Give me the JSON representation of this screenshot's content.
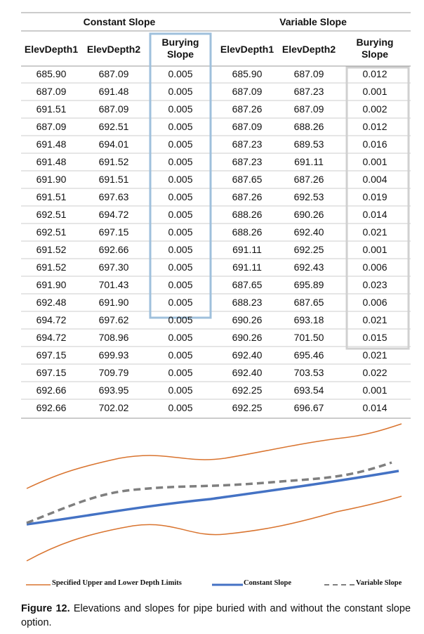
{
  "table": {
    "groups": [
      "Constant Slope",
      "Variable Slope"
    ],
    "columns": [
      "ElevDepth1",
      "ElevDepth2",
      "Burying Slope",
      "ElevDepth1",
      "ElevDepth2",
      "Burying Slope"
    ],
    "rows": [
      [
        "685.90",
        "687.09",
        "0.005",
        "685.90",
        "687.09",
        "0.012"
      ],
      [
        "687.09",
        "691.48",
        "0.005",
        "687.09",
        "687.23",
        "0.001"
      ],
      [
        "691.51",
        "687.09",
        "0.005",
        "687.26",
        "687.09",
        "0.002"
      ],
      [
        "687.09",
        "692.51",
        "0.005",
        "687.09",
        "688.26",
        "0.012"
      ],
      [
        "691.48",
        "694.01",
        "0.005",
        "687.23",
        "689.53",
        "0.016"
      ],
      [
        "691.48",
        "691.52",
        "0.005",
        "687.23",
        "691.11",
        "0.001"
      ],
      [
        "691.90",
        "691.51",
        "0.005",
        "687.65",
        "687.26",
        "0.004"
      ],
      [
        "691.51",
        "697.63",
        "0.005",
        "687.26",
        "692.53",
        "0.019"
      ],
      [
        "692.51",
        "694.72",
        "0.005",
        "688.26",
        "690.26",
        "0.014"
      ],
      [
        "692.51",
        "697.15",
        "0.005",
        "688.26",
        "692.40",
        "0.021"
      ],
      [
        "691.52",
        "692.66",
        "0.005",
        "691.11",
        "692.25",
        "0.001"
      ],
      [
        "691.52",
        "697.30",
        "0.005",
        "691.11",
        "692.43",
        "0.006"
      ],
      [
        "691.90",
        "701.43",
        "0.005",
        "687.65",
        "695.89",
        "0.023"
      ],
      [
        "692.48",
        "691.90",
        "0.005",
        "688.23",
        "687.65",
        "0.006"
      ],
      [
        "694.72",
        "697.62",
        "0.005",
        "690.26",
        "693.18",
        "0.021"
      ],
      [
        "694.72",
        "708.96",
        "0.005",
        "690.26",
        "701.50",
        "0.015"
      ],
      [
        "697.15",
        "699.93",
        "0.005",
        "692.40",
        "695.46",
        "0.021"
      ],
      [
        "697.15",
        "709.79",
        "0.005",
        "692.40",
        "703.53",
        "0.022"
      ],
      [
        "692.66",
        "693.95",
        "0.005",
        "692.25",
        "693.54",
        "0.001"
      ],
      [
        "692.66",
        "702.02",
        "0.005",
        "692.25",
        "696.67",
        "0.014"
      ]
    ]
  },
  "legend": [
    "Specified Upper and Lower Depth Limits",
    "Constant Slope",
    "Variable Slope"
  ],
  "caption": {
    "label": "Figure 12.",
    "text": "Elevations and slopes for pipe buried with and without the constant slope option."
  }
}
